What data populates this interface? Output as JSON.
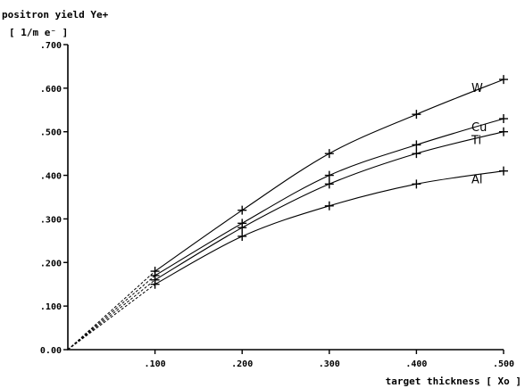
{
  "chart_data": {
    "type": "line",
    "title": "",
    "ylabel_line1": "positron yield Ye+",
    "ylabel_line2": "[ 1/m e⁻ ]",
    "xlabel": "target thickness [ Xo ]",
    "xlim": [
      0,
      0.5
    ],
    "ylim": [
      0,
      0.7
    ],
    "x_ticks": [
      {
        "value": 0.1,
        "label": ".100"
      },
      {
        "value": 0.2,
        "label": ".200"
      },
      {
        "value": 0.3,
        "label": ".300"
      },
      {
        "value": 0.4,
        "label": ".400"
      },
      {
        "value": 0.5,
        "label": ".500"
      }
    ],
    "y_ticks": [
      {
        "value": 0.0,
        "label": "0.00"
      },
      {
        "value": 0.1,
        "label": ".100"
      },
      {
        "value": 0.2,
        "label": ".200"
      },
      {
        "value": 0.3,
        "label": ".300"
      },
      {
        "value": 0.4,
        "label": ".400"
      },
      {
        "value": 0.5,
        "label": ".500"
      },
      {
        "value": 0.6,
        "label": ".600"
      },
      {
        "value": 0.7,
        "label": ".700"
      }
    ],
    "grid": false,
    "legend": "none",
    "x": [
      0.1,
      0.2,
      0.3,
      0.4,
      0.5
    ],
    "series": [
      {
        "name": "W",
        "values": [
          0.18,
          0.32,
          0.45,
          0.54,
          0.62
        ]
      },
      {
        "name": "Cu",
        "values": [
          0.17,
          0.29,
          0.4,
          0.47,
          0.53
        ]
      },
      {
        "name": "Ti",
        "values": [
          0.16,
          0.28,
          0.38,
          0.45,
          0.5
        ]
      },
      {
        "name": "Al",
        "values": [
          0.15,
          0.26,
          0.33,
          0.38,
          0.41
        ]
      }
    ]
  }
}
